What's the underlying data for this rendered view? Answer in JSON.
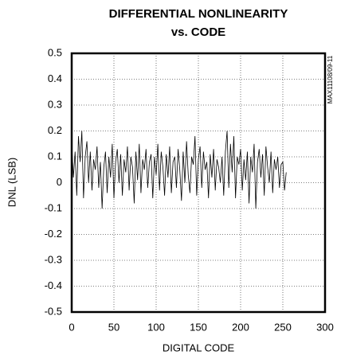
{
  "chart_data": {
    "type": "line",
    "title": "DIFFERENTIAL NONLINEARITY",
    "subtitle": "vs. CODE",
    "x_label": "DIGITAL CODE",
    "y_label": "DNL (LSB)",
    "annotation": "MAX11108/09-11",
    "xlim": [
      0,
      300
    ],
    "xticks": [
      0,
      50,
      100,
      150,
      200,
      250,
      300
    ],
    "ylim": [
      -0.5,
      0.5
    ],
    "yticks": [
      -0.5,
      -0.4,
      -0.3,
      -0.2,
      -0.1,
      0,
      0.1,
      0.2,
      0.3,
      0.4,
      0.5
    ],
    "grid": true,
    "series": [
      {
        "name": "DNL",
        "color": "#000000",
        "x": [
          0,
          2,
          4,
          6,
          8,
          10,
          12,
          14,
          16,
          18,
          20,
          22,
          24,
          26,
          28,
          30,
          32,
          34,
          36,
          38,
          40,
          42,
          44,
          46,
          48,
          50,
          52,
          54,
          56,
          58,
          60,
          62,
          64,
          66,
          68,
          70,
          72,
          74,
          76,
          78,
          80,
          82,
          84,
          86,
          88,
          90,
          92,
          94,
          96,
          98,
          100,
          102,
          104,
          106,
          108,
          110,
          112,
          114,
          116,
          118,
          120,
          122,
          124,
          126,
          128,
          130,
          132,
          134,
          136,
          138,
          140,
          142,
          144,
          146,
          148,
          150,
          152,
          154,
          156,
          158,
          160,
          162,
          164,
          166,
          168,
          170,
          172,
          174,
          176,
          178,
          180,
          182,
          184,
          186,
          188,
          190,
          192,
          194,
          196,
          198,
          200,
          202,
          204,
          206,
          208,
          210,
          212,
          214,
          216,
          218,
          220,
          222,
          224,
          226,
          228,
          230,
          232,
          234,
          236,
          238,
          240,
          242,
          244,
          246,
          248,
          250,
          252,
          254
        ],
        "values": [
          0.15,
          0.02,
          0.12,
          -0.05,
          0.18,
          0.08,
          0.2,
          -0.06,
          0.1,
          0.16,
          0.0,
          0.12,
          -0.03,
          0.09,
          0.05,
          0.14,
          -0.02,
          0.08,
          -0.1,
          0.06,
          0.12,
          -0.04,
          0.1,
          0.02,
          0.15,
          -0.06,
          0.08,
          0.13,
          0.0,
          0.11,
          -0.05,
          0.09,
          0.04,
          0.14,
          -0.03,
          0.1,
          0.06,
          -0.08,
          0.12,
          0.01,
          0.15,
          -0.04,
          0.09,
          0.05,
          0.13,
          -0.02,
          0.08,
          0.11,
          -0.06,
          0.1,
          0.03,
          0.15,
          -0.03,
          0.12,
          0.06,
          -0.05,
          0.11,
          0.02,
          0.14,
          -0.04,
          0.08,
          0.1,
          -0.02,
          0.13,
          0.05,
          -0.07,
          0.12,
          0.0,
          0.16,
          0.03,
          -0.04,
          0.1,
          0.07,
          0.18,
          -0.05,
          0.09,
          0.14,
          -0.02,
          0.12,
          0.05,
          0.08,
          -0.06,
          0.11,
          0.02,
          0.13,
          -0.03,
          0.09,
          0.06,
          0.0,
          0.1,
          -0.05,
          0.12,
          0.2,
          -0.02,
          0.15,
          0.04,
          0.18,
          -0.06,
          0.1,
          0.07,
          0.13,
          -0.03,
          0.09,
          0.01,
          0.12,
          -0.08,
          0.1,
          0.04,
          0.15,
          -0.1,
          0.08,
          0.13,
          0.02,
          0.11,
          -0.05,
          0.14,
          0.06,
          0.0,
          0.12,
          -0.04,
          0.09,
          0.05,
          0.1,
          -0.02,
          0.07,
          0.08,
          -0.03,
          0.04
        ]
      }
    ]
  }
}
